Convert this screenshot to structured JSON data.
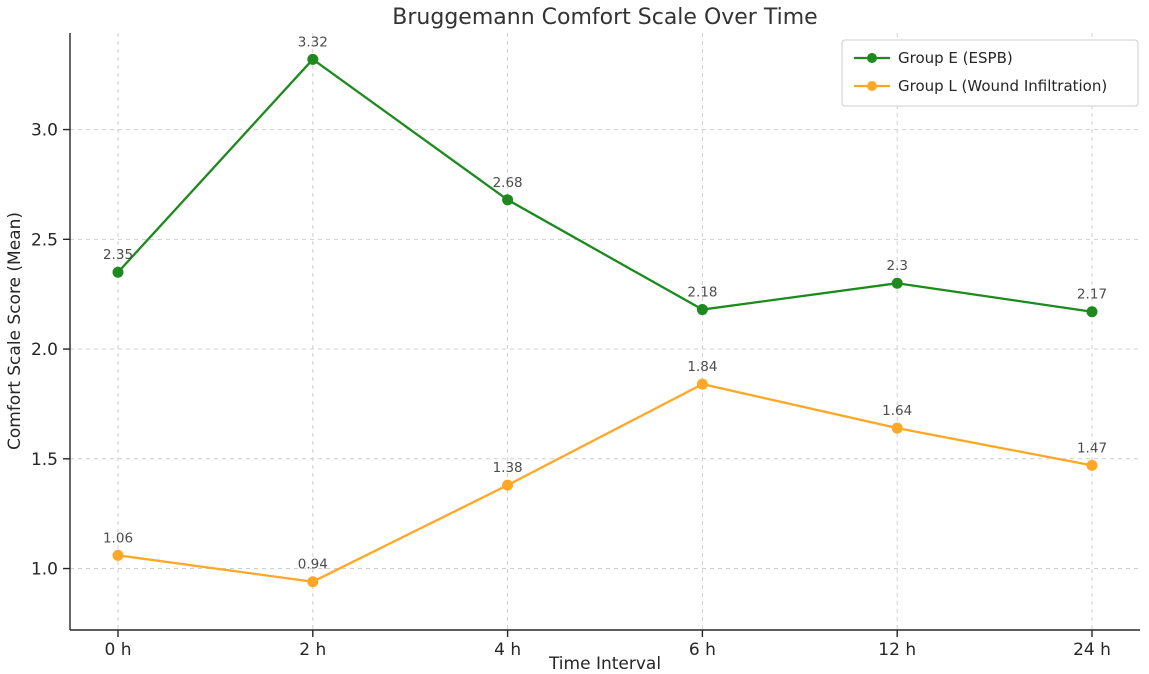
{
  "chart_data": {
    "type": "line",
    "title": "Bruggemann Comfort Scale Over Time",
    "xlabel": "Time Interval",
    "ylabel": "Comfort Scale Score (Mean)",
    "categories": [
      "0 h",
      "2 h",
      "4 h",
      "6 h",
      "12 h",
      "24 h"
    ],
    "series": [
      {
        "name": "Group E (ESPB)",
        "color": "#1c8a1c",
        "values": [
          2.35,
          3.32,
          2.68,
          2.18,
          2.3,
          2.17
        ]
      },
      {
        "name": "Group L (Wound Infiltration)",
        "color": "#ffa726",
        "values": [
          1.06,
          0.94,
          1.38,
          1.84,
          1.64,
          1.47
        ]
      }
    ],
    "yticks": [
      1.0,
      1.5,
      2.0,
      2.5,
      3.0
    ],
    "ylim": [
      0.72,
      3.44
    ],
    "grid": true,
    "grid_style": "dashed",
    "legend_position": "top-right",
    "marker": "circle",
    "point_labels_shown": true
  }
}
